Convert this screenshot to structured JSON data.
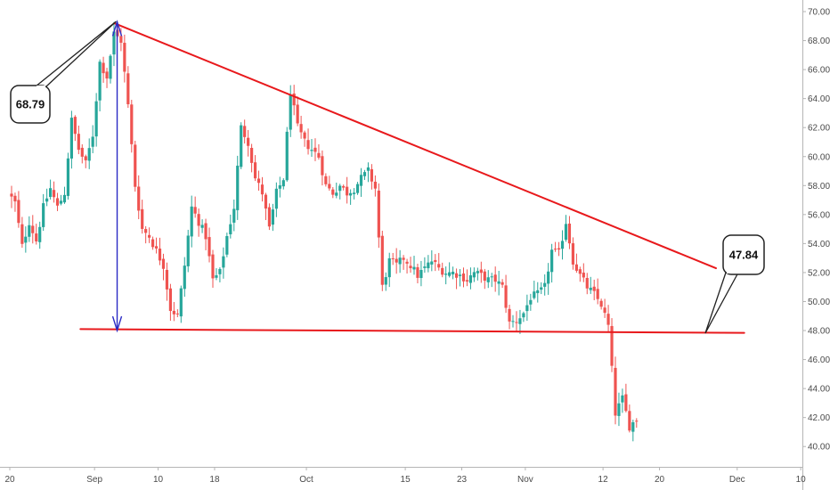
{
  "chart_data": {
    "type": "candlestick",
    "title": "",
    "xlabel": "",
    "ylabel": "",
    "ylim": [
      38.6,
      70.8
    ],
    "grid": false,
    "y_ticks": [
      "40.00",
      "42.00",
      "44.00",
      "46.00",
      "48.00",
      "50.00",
      "52.00",
      "54.00",
      "56.00",
      "58.00",
      "60.00",
      "62.00",
      "64.00",
      "66.00",
      "68.00",
      "70.00"
    ],
    "x_ticks": [
      {
        "label": "20",
        "day": 0
      },
      {
        "label": "Sep",
        "day": 12
      },
      {
        "label": "10",
        "day": 21
      },
      {
        "label": "18",
        "day": 29
      },
      {
        "label": "Oct",
        "day": 42
      },
      {
        "label": "15",
        "day": 56
      },
      {
        "label": "23",
        "day": 64
      },
      {
        "label": "Nov",
        "day": 73
      },
      {
        "label": "12",
        "day": 84
      },
      {
        "label": "20",
        "day": 92
      },
      {
        "label": "Dec",
        "day": 103
      },
      {
        "label": "10",
        "day": 112
      }
    ],
    "anchors": [
      {
        "day": 0,
        "price": 57.5
      },
      {
        "day": 1,
        "price": 56.8
      },
      {
        "day": 2,
        "price": 53.8
      },
      {
        "day": 3,
        "price": 55.5
      },
      {
        "day": 4,
        "price": 54.2
      },
      {
        "day": 5,
        "price": 56.5
      },
      {
        "day": 6,
        "price": 57.8
      },
      {
        "day": 7,
        "price": 56.5
      },
      {
        "day": 8,
        "price": 57.5
      },
      {
        "day": 9,
        "price": 62.5
      },
      {
        "day": 10,
        "price": 60.5
      },
      {
        "day": 11,
        "price": 59.5
      },
      {
        "day": 12,
        "price": 61.5
      },
      {
        "day": 13,
        "price": 66.5
      },
      {
        "day": 14,
        "price": 65.5
      },
      {
        "day": 15,
        "price": 68.5
      },
      {
        "day": 16,
        "price": 68.0
      },
      {
        "day": 17,
        "price": 63.5
      },
      {
        "day": 18,
        "price": 58.0
      },
      {
        "day": 19,
        "price": 55.0
      },
      {
        "day": 20,
        "price": 54.5
      },
      {
        "day": 21,
        "price": 53.5
      },
      {
        "day": 22,
        "price": 52.5
      },
      {
        "day": 23,
        "price": 49.5
      },
      {
        "day": 24,
        "price": 49.0
      },
      {
        "day": 25,
        "price": 52.5
      },
      {
        "day": 26,
        "price": 56.5
      },
      {
        "day": 27,
        "price": 55.5
      },
      {
        "day": 28,
        "price": 54.5
      },
      {
        "day": 29,
        "price": 51.5
      },
      {
        "day": 30,
        "price": 52.0
      },
      {
        "day": 31,
        "price": 54.5
      },
      {
        "day": 32,
        "price": 56.5
      },
      {
        "day": 33,
        "price": 62.0
      },
      {
        "day": 34,
        "price": 61.0
      },
      {
        "day": 35,
        "price": 58.5
      },
      {
        "day": 36,
        "price": 57.5
      },
      {
        "day": 37,
        "price": 55.0
      },
      {
        "day": 38,
        "price": 57.5
      },
      {
        "day": 39,
        "price": 58.5
      },
      {
        "day": 40,
        "price": 64.5
      },
      {
        "day": 41,
        "price": 62.0
      },
      {
        "day": 42,
        "price": 61.0
      },
      {
        "day": 43,
        "price": 60.5
      },
      {
        "day": 44,
        "price": 60.0
      },
      {
        "day": 45,
        "price": 58.0
      },
      {
        "day": 46,
        "price": 57.5
      },
      {
        "day": 47,
        "price": 58.0
      },
      {
        "day": 48,
        "price": 57.5
      },
      {
        "day": 49,
        "price": 57.8
      },
      {
        "day": 50,
        "price": 58.5
      },
      {
        "day": 51,
        "price": 59.0
      },
      {
        "day": 52,
        "price": 57.8
      },
      {
        "day": 53,
        "price": 51.0
      },
      {
        "day": 54,
        "price": 52.8
      },
      {
        "day": 55,
        "price": 52.5
      },
      {
        "day": 56,
        "price": 53.0
      },
      {
        "day": 57,
        "price": 52.5
      },
      {
        "day": 58,
        "price": 51.8
      },
      {
        "day": 59,
        "price": 52.3
      },
      {
        "day": 60,
        "price": 52.8
      },
      {
        "day": 61,
        "price": 52.3
      },
      {
        "day": 62,
        "price": 52.0
      },
      {
        "day": 63,
        "price": 52.0
      },
      {
        "day": 64,
        "price": 51.8
      },
      {
        "day": 65,
        "price": 51.5
      },
      {
        "day": 66,
        "price": 52.0
      },
      {
        "day": 67,
        "price": 51.8
      },
      {
        "day": 68,
        "price": 51.5
      },
      {
        "day": 69,
        "price": 51.5
      },
      {
        "day": 70,
        "price": 51.0
      },
      {
        "day": 71,
        "price": 48.5
      },
      {
        "day": 72,
        "price": 48.7
      },
      {
        "day": 73,
        "price": 49.2
      },
      {
        "day": 74,
        "price": 50.3
      },
      {
        "day": 75,
        "price": 50.5
      },
      {
        "day": 76,
        "price": 51.0
      },
      {
        "day": 77,
        "price": 53.5
      },
      {
        "day": 78,
        "price": 53.3
      },
      {
        "day": 79,
        "price": 55.5
      },
      {
        "day": 80,
        "price": 52.8
      },
      {
        "day": 81,
        "price": 51.8
      },
      {
        "day": 82,
        "price": 51.0
      },
      {
        "day": 83,
        "price": 50.5
      },
      {
        "day": 84,
        "price": 49.8
      },
      {
        "day": 85,
        "price": 48.3
      },
      {
        "day": 86,
        "price": 42.3
      },
      {
        "day": 87,
        "price": 43.3
      },
      {
        "day": 88,
        "price": 41.4
      },
      {
        "day": 89,
        "price": 41.9
      }
    ],
    "trendlines": [
      {
        "name": "upper-trendline",
        "color": "#e8191c",
        "from": {
          "day": 14.8,
          "price": 69.2
        },
        "to": {
          "day": 100,
          "price": 52.3
        }
      },
      {
        "name": "support-line",
        "color": "#e8191c",
        "from": {
          "day": 10,
          "price": 48.1
        },
        "to": {
          "day": 104,
          "price": 47.84
        }
      }
    ],
    "measure_arrow": {
      "color": "#2a2ac4",
      "day": 15.2,
      "from_price": 48.0,
      "to_price": 69.3
    },
    "callouts": [
      {
        "name": "high-callout",
        "text": "68.79",
        "anchor": {
          "day": 15.0,
          "price": 69.3
        }
      },
      {
        "name": "support-callout",
        "text": "47.84",
        "anchor": {
          "day": 98.5,
          "price": 47.84
        }
      }
    ],
    "colors": {
      "up": "#26a69a",
      "down": "#ef5350",
      "axis": "#b5b5b5",
      "text": "#4a4a4a"
    }
  }
}
